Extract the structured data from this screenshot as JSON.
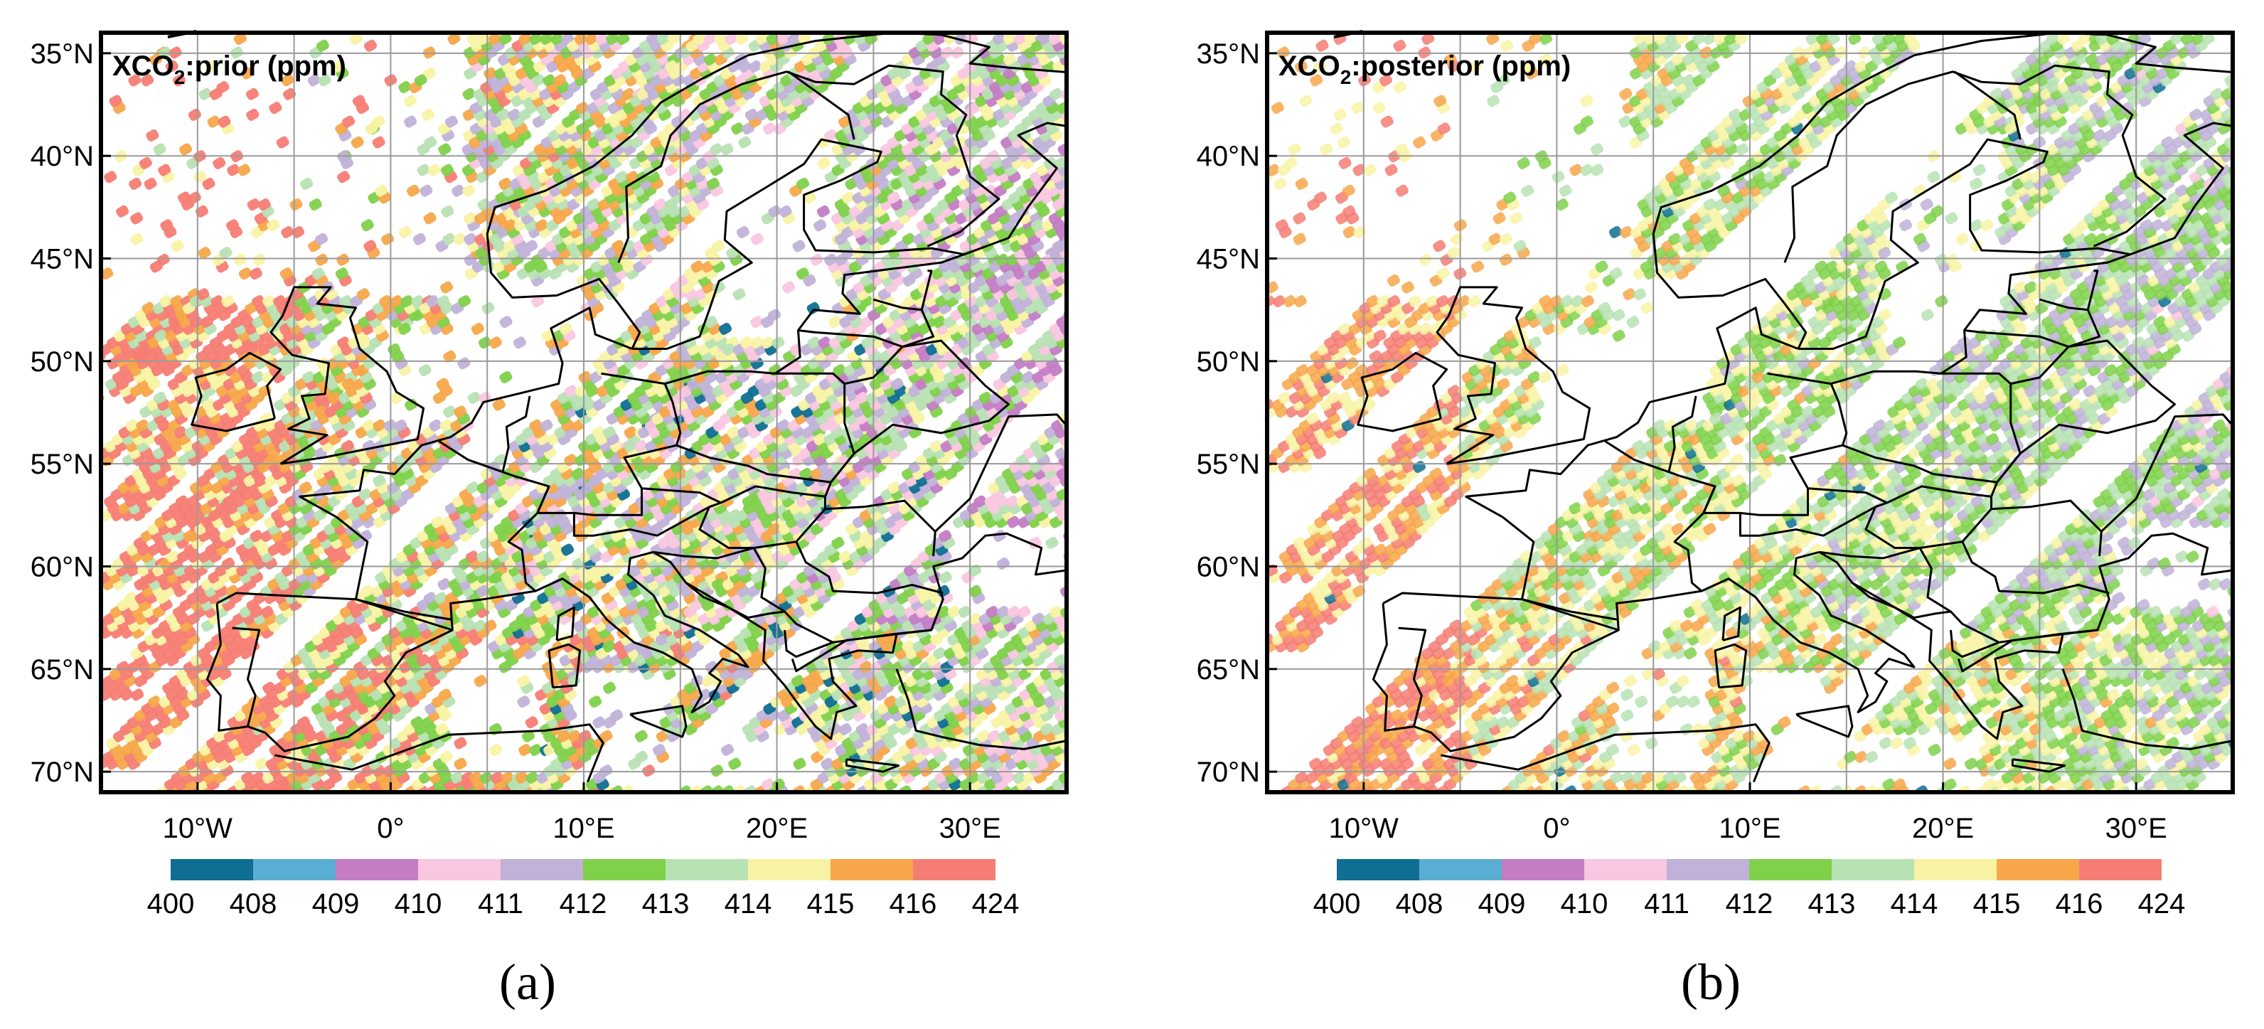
{
  "panels": [
    {
      "id": "a",
      "title_prefix": "XCO",
      "title_sub": "2",
      "title_suffix": ":prior (ppm)",
      "caption": "(a)",
      "lat_labels": [
        "70°N",
        "65°N",
        "60°N",
        "55°N",
        "50°N",
        "45°N",
        "40°N",
        "35°N"
      ],
      "lon_labels": [
        "10°W",
        "0°",
        "10°E",
        "20°E",
        "30°E"
      ]
    },
    {
      "id": "b",
      "title_prefix": "XCO",
      "title_sub": "2",
      "title_suffix": ":posterior (ppm)",
      "caption": "(b)",
      "lat_labels": [
        "70°N",
        "65°N",
        "60°N",
        "55°N",
        "50°N",
        "45°N",
        "40°N",
        "35°N"
      ],
      "lon_labels": [
        "10°W",
        "0°",
        "10°E",
        "20°E",
        "30°E"
      ]
    }
  ],
  "colorbar": {
    "ticks": [
      "400",
      "408",
      "409",
      "410",
      "411",
      "412",
      "413",
      "414",
      "415",
      "416",
      "424"
    ],
    "colors": [
      "#0f6e91",
      "#5aaed3",
      "#c47cc4",
      "#f9c7df",
      "#c0b2d8",
      "#7fd14a",
      "#b7e2b3",
      "#f8f3a4",
      "#f7a64a",
      "#f57d73"
    ]
  },
  "chart_data": [
    {
      "type": "heatmap",
      "title": "XCO2:prior (ppm)",
      "variable": "XCO2 prior",
      "units": "ppm",
      "lon_range": [
        -15,
        35
      ],
      "lat_range": [
        34,
        71
      ],
      "lon_ticks": [
        -10,
        0,
        10,
        20,
        30
      ],
      "lat_ticks": [
        35,
        40,
        45,
        50,
        55,
        60,
        65,
        70
      ],
      "color_bins": [
        400,
        408,
        409,
        410,
        411,
        412,
        413,
        414,
        415,
        416,
        424
      ],
      "grid": true,
      "field_description": "Satellite swaths of XCO2 over Europe; high values (415–424) in west/south-west, low values (400–408) scattered over central Europe, Italy and the Balkans"
    },
    {
      "type": "heatmap",
      "title": "XCO2:posterior (ppm)",
      "variable": "XCO2 posterior",
      "units": "ppm",
      "lon_range": [
        -15,
        35
      ],
      "lat_range": [
        34,
        71
      ],
      "lon_ticks": [
        -10,
        0,
        10,
        20,
        30
      ],
      "lat_ticks": [
        35,
        40,
        45,
        50,
        55,
        60,
        65,
        70
      ],
      "color_bins": [
        400,
        408,
        409,
        410,
        411,
        412,
        413,
        414,
        415,
        416,
        424
      ],
      "grid": true,
      "field_description": "Smoother field than prior; mostly 412–416 ppm, fewer extreme values"
    }
  ]
}
